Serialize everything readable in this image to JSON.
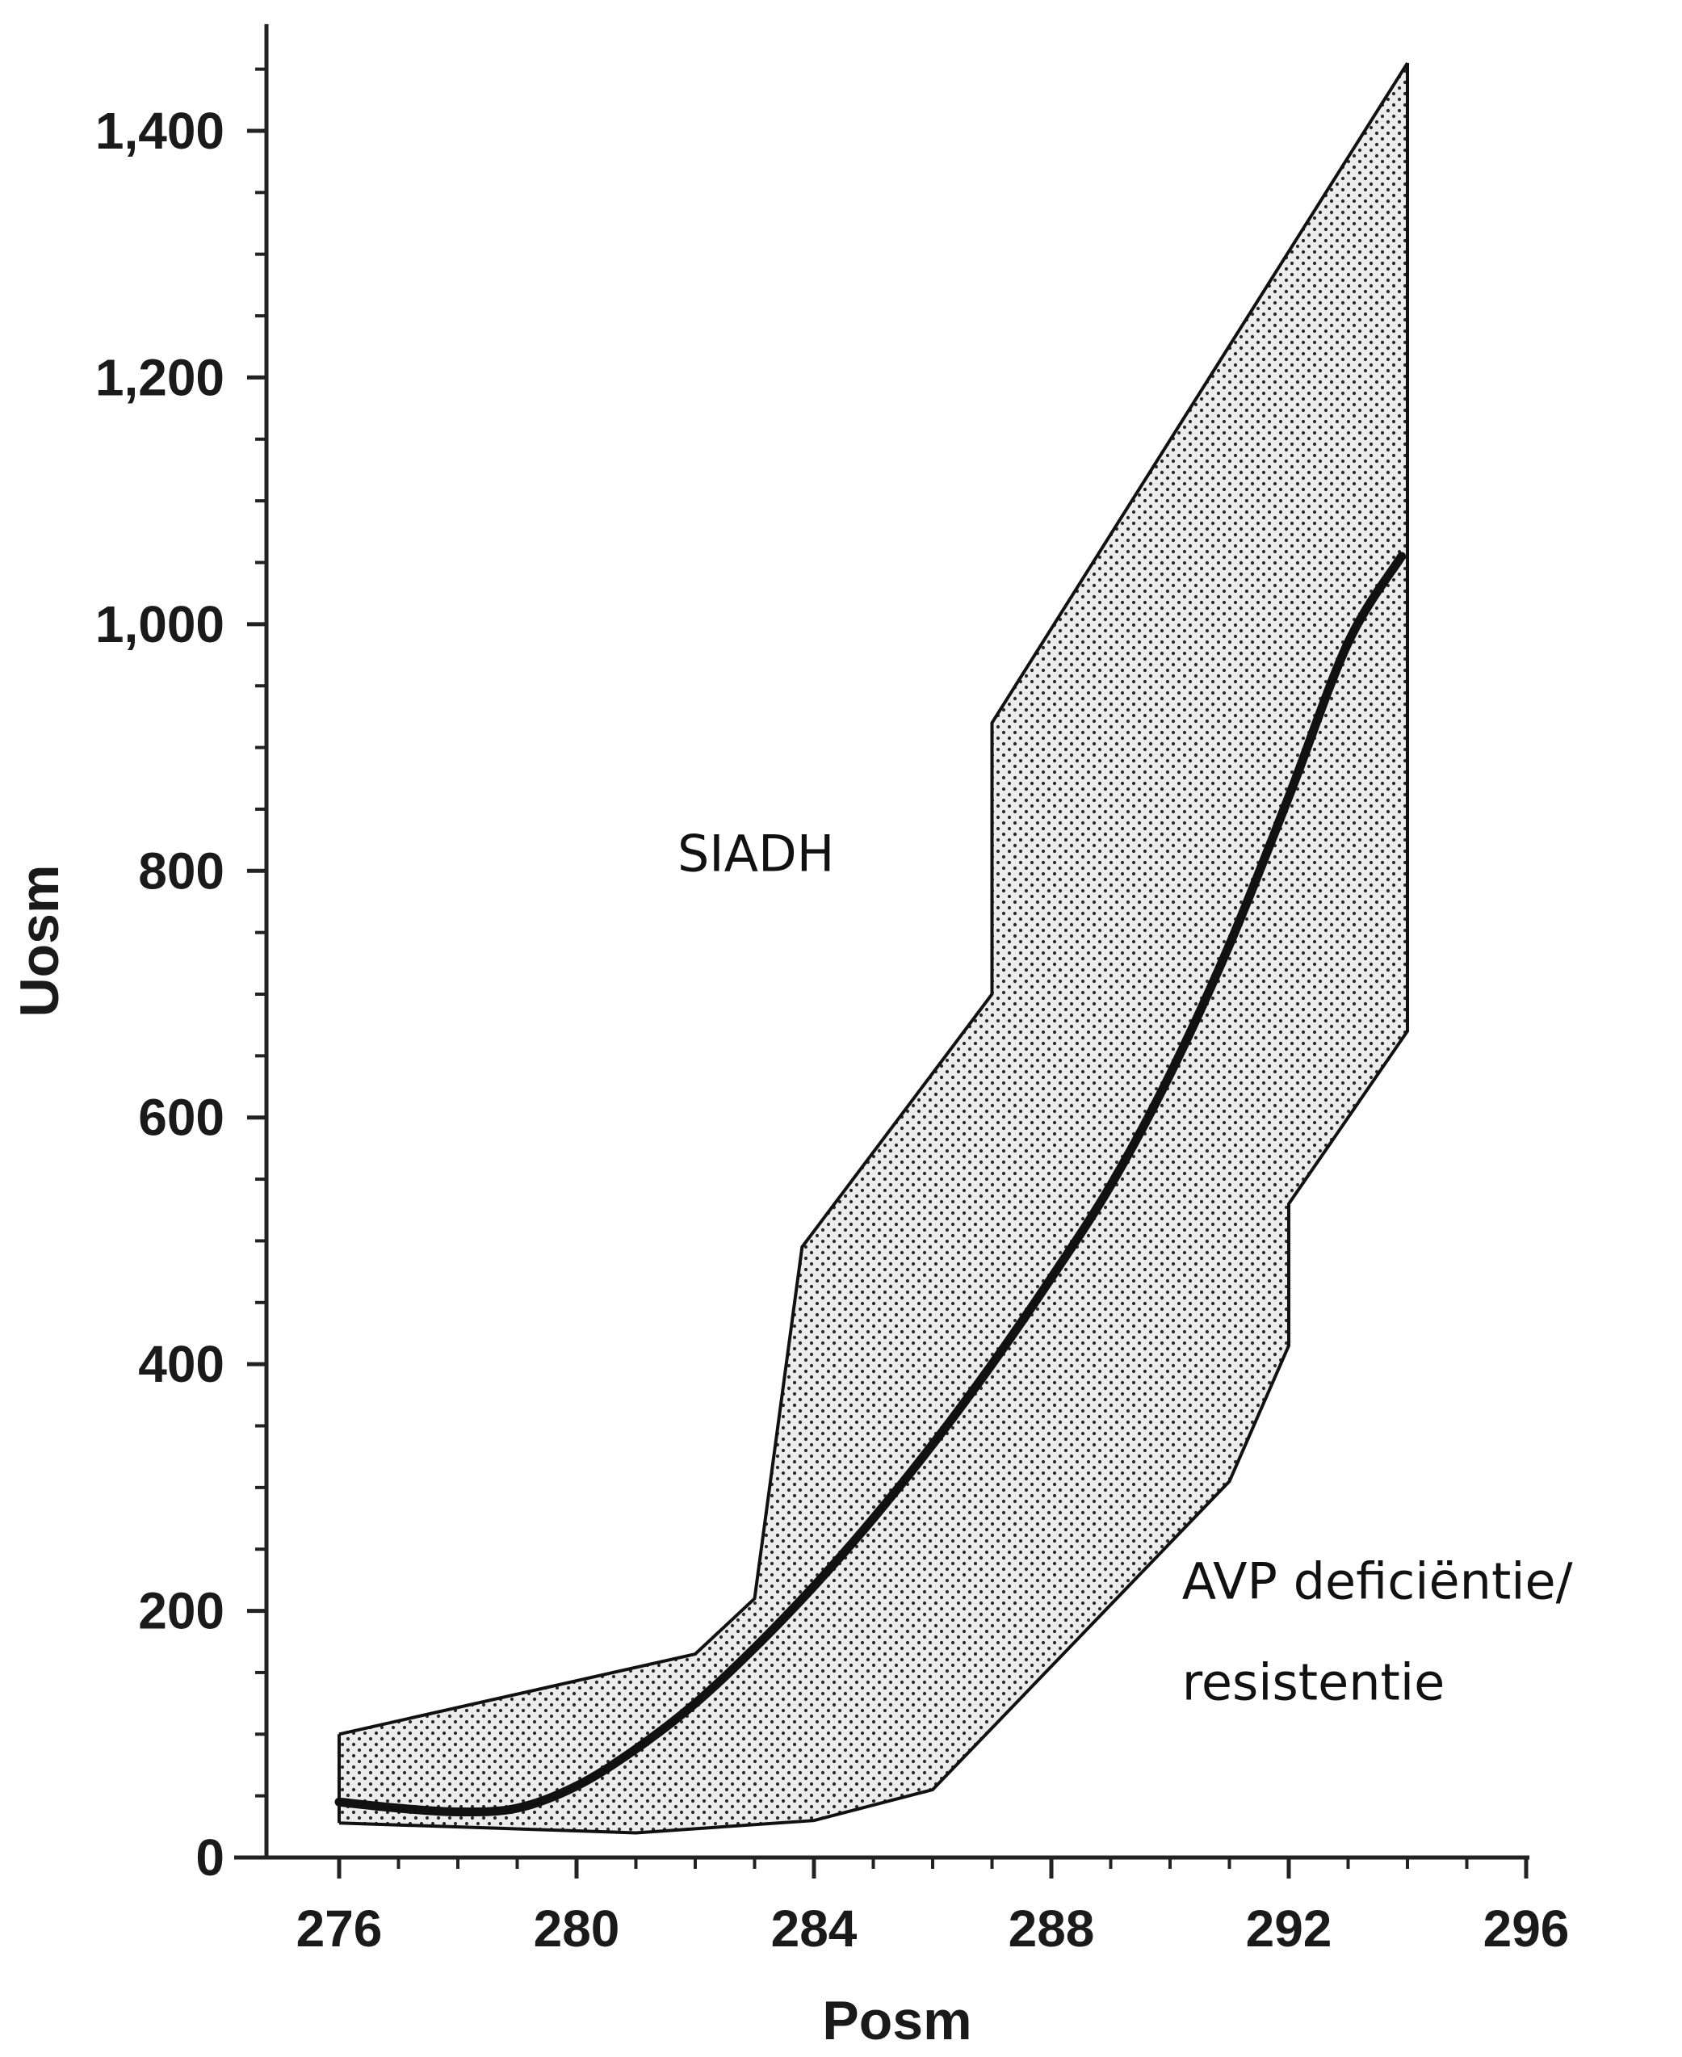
{
  "chart_data": {
    "type": "area",
    "title": "",
    "xlabel": "Posm",
    "ylabel": "Uosm",
    "xlim": [
      275,
      296
    ],
    "ylim": [
      0,
      1480
    ],
    "x_ticks": [
      276,
      280,
      284,
      288,
      292,
      296
    ],
    "x_tick_labels": [
      "276",
      "280",
      "284",
      "288",
      "292",
      "296"
    ],
    "y_ticks": [
      0,
      200,
      400,
      600,
      800,
      1000,
      1200,
      1400
    ],
    "y_tick_labels": [
      "0",
      "200",
      "400",
      "600",
      "800",
      "1,000",
      "1,200",
      "1,400"
    ],
    "grid": false,
    "band": {
      "upper": [
        [
          276,
          100
        ],
        [
          282,
          165
        ],
        [
          283,
          210
        ],
        [
          283.8,
          495
        ],
        [
          287,
          700
        ],
        [
          287,
          920
        ],
        [
          294,
          1455
        ]
      ],
      "lower": [
        [
          276,
          28
        ],
        [
          281,
          20
        ],
        [
          284,
          30
        ],
        [
          286,
          55
        ],
        [
          291,
          305
        ],
        [
          292,
          415
        ],
        [
          292,
          530
        ],
        [
          294,
          670
        ],
        [
          294,
          960
        ]
      ],
      "fill": "#ececec"
    },
    "series": [
      {
        "x": [
          276,
          277,
          278,
          279,
          280,
          281,
          282,
          283,
          284,
          285,
          286,
          287,
          288,
          289,
          290,
          291,
          292,
          293,
          293.9
        ],
        "y": [
          45,
          40,
          37,
          40,
          58,
          88,
          125,
          170,
          220,
          275,
          335,
          400,
          470,
          545,
          635,
          740,
          860,
          985,
          1055
        ],
        "color": "#111111"
      }
    ],
    "annotations": [
      {
        "text": "SIADH",
        "x": 281.7,
        "y": 800
      },
      {
        "text": "AVP deficiëntie/",
        "x": 290.2,
        "y": 210
      },
      {
        "text": "resistentie",
        "x": 290.2,
        "y": 128
      }
    ]
  }
}
